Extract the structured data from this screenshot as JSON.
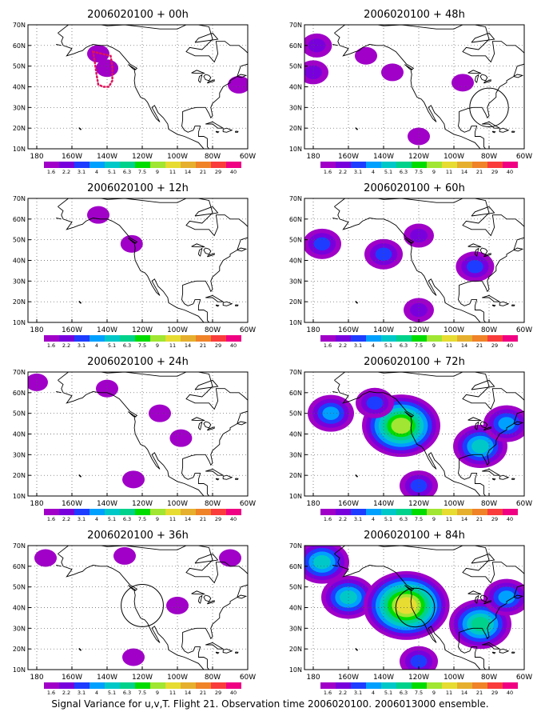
{
  "caption": "Signal Variance for u,v,T. Flight 21. Observation time 2006020100. 2006013000 ensemble.",
  "colorbar": {
    "labels": [
      "1.6",
      "2.2",
      "3.1",
      "4",
      "5.1",
      "6.3",
      "7.5",
      "9",
      "11",
      "14",
      "21",
      "29",
      "40"
    ],
    "colors": [
      "#a000c8",
      "#7800dc",
      "#1e3cff",
      "#00a0ff",
      "#00c8c8",
      "#00d28c",
      "#00dc00",
      "#a0e632",
      "#e6dc32",
      "#e6af2d",
      "#f08228",
      "#fa3c3c",
      "#f00082"
    ]
  },
  "chart_data": [
    {
      "type": "heatmap",
      "title": "2006020100 + 00h",
      "x_ticks": [
        "180",
        "160W",
        "140W",
        "120W",
        "100W",
        "80W",
        "60W"
      ],
      "y_ticks": [
        "10N",
        "20N",
        "30N",
        "40N",
        "50N",
        "60N",
        "70N"
      ],
      "xlim": [
        -185,
        -60
      ],
      "ylim": [
        10,
        70
      ],
      "grid": true,
      "signal": [
        {
          "lon": -145,
          "lat": 56,
          "value": 1.8
        },
        {
          "lon": -140,
          "lat": 49,
          "value": 1.8
        },
        {
          "lon": -65,
          "lat": 41,
          "value": 1.8
        }
      ],
      "flight_track": [
        [
          -148,
          57
        ],
        [
          -143,
          56
        ],
        [
          -138,
          55
        ],
        [
          -137,
          50
        ],
        [
          -137,
          43
        ],
        [
          -139,
          40
        ],
        [
          -142,
          40
        ],
        [
          -145,
          41
        ],
        [
          -146,
          46
        ],
        [
          -147,
          52
        ]
      ],
      "circle": null
    },
    {
      "type": "heatmap",
      "title": "2006020100 + 12h",
      "x_ticks": [
        "180",
        "160W",
        "140W",
        "120W",
        "100W",
        "80W",
        "60W"
      ],
      "y_ticks": [
        "10N",
        "20N",
        "30N",
        "40N",
        "50N",
        "60N",
        "70N"
      ],
      "xlim": [
        -185,
        -60
      ],
      "ylim": [
        10,
        70
      ],
      "grid": true,
      "signal": [
        {
          "lon": -145,
          "lat": 62,
          "value": 2.0
        },
        {
          "lon": -126,
          "lat": 48,
          "value": 2.0
        }
      ],
      "flight_track": [],
      "circle": null
    },
    {
      "type": "heatmap",
      "title": "2006020100 + 24h",
      "x_ticks": [
        "180",
        "160W",
        "140W",
        "120W",
        "100W",
        "80W",
        "60W"
      ],
      "y_ticks": [
        "10N",
        "20N",
        "30N",
        "40N",
        "50N",
        "60N",
        "70N"
      ],
      "xlim": [
        -185,
        -60
      ],
      "ylim": [
        10,
        70
      ],
      "grid": true,
      "signal": [
        {
          "lon": -180,
          "lat": 65,
          "value": 1.8
        },
        {
          "lon": -140,
          "lat": 62,
          "value": 2.0
        },
        {
          "lon": -110,
          "lat": 50,
          "value": 1.8
        },
        {
          "lon": -98,
          "lat": 38,
          "value": 1.8
        },
        {
          "lon": -125,
          "lat": 18,
          "value": 1.8
        }
      ],
      "flight_track": [],
      "circle": null
    },
    {
      "type": "heatmap",
      "title": "2006020100 + 36h",
      "x_ticks": [
        "180",
        "160W",
        "140W",
        "120W",
        "100W",
        "80W",
        "60W"
      ],
      "y_ticks": [
        "10N",
        "20N",
        "30N",
        "40N",
        "50N",
        "60N",
        "70N"
      ],
      "xlim": [
        -185,
        -60
      ],
      "ylim": [
        10,
        70
      ],
      "grid": true,
      "signal": [
        {
          "lon": -175,
          "lat": 64,
          "value": 1.8
        },
        {
          "lon": -130,
          "lat": 65,
          "value": 2.0
        },
        {
          "lon": -100,
          "lat": 41,
          "value": 2.0
        },
        {
          "lon": -70,
          "lat": 64,
          "value": 1.8
        },
        {
          "lon": -125,
          "lat": 16,
          "value": 1.8
        }
      ],
      "flight_track": [],
      "circle": {
        "lon": -120,
        "lat": 41,
        "radius_deg": 12
      }
    },
    {
      "type": "heatmap",
      "title": "2006020100 + 48h",
      "x_ticks": [
        "180",
        "160W",
        "140W",
        "120W",
        "100W",
        "80W",
        "60W"
      ],
      "y_ticks": [
        "10N",
        "20N",
        "30N",
        "40N",
        "50N",
        "60N",
        "70N"
      ],
      "xlim": [
        -185,
        -60
      ],
      "ylim": [
        10,
        70
      ],
      "grid": true,
      "signal": [
        {
          "lon": -178,
          "lat": 60,
          "value": 2.2
        },
        {
          "lon": -180,
          "lat": 47,
          "value": 2.4
        },
        {
          "lon": -150,
          "lat": 55,
          "value": 2.0
        },
        {
          "lon": -135,
          "lat": 47,
          "value": 2.0
        },
        {
          "lon": -95,
          "lat": 42,
          "value": 2.0
        },
        {
          "lon": -120,
          "lat": 16,
          "value": 2.0
        }
      ],
      "flight_track": [],
      "circle": {
        "lon": -80,
        "lat": 30,
        "radius_deg": 11
      }
    },
    {
      "type": "heatmap",
      "title": "2006020100 + 60h",
      "x_ticks": [
        "180",
        "160W",
        "140W",
        "120W",
        "100W",
        "80W",
        "60W"
      ],
      "y_ticks": [
        "10N",
        "20N",
        "30N",
        "40N",
        "50N",
        "60N",
        "70N"
      ],
      "xlim": [
        -185,
        -60
      ],
      "ylim": [
        10,
        70
      ],
      "grid": true,
      "signal": [
        {
          "lon": -175,
          "lat": 48,
          "value": 3.2
        },
        {
          "lon": -140,
          "lat": 43,
          "value": 3.6
        },
        {
          "lon": -120,
          "lat": 52,
          "value": 2.4
        },
        {
          "lon": -88,
          "lat": 37,
          "value": 3.5
        },
        {
          "lon": -120,
          "lat": 16,
          "value": 2.6
        }
      ],
      "flight_track": [],
      "circle": null
    },
    {
      "type": "heatmap",
      "title": "2006020100 + 72h",
      "x_ticks": [
        "180",
        "160W",
        "140W",
        "120W",
        "100W",
        "80W",
        "60W"
      ],
      "y_ticks": [
        "10N",
        "20N",
        "30N",
        "40N",
        "50N",
        "60N",
        "70N"
      ],
      "xlim": [
        -185,
        -60
      ],
      "ylim": [
        10,
        70
      ],
      "grid": true,
      "signal": [
        {
          "lon": -170,
          "lat": 50,
          "value": 4.5
        },
        {
          "lon": -130,
          "lat": 44,
          "value": 9.5
        },
        {
          "lon": -145,
          "lat": 55,
          "value": 3.5
        },
        {
          "lon": -85,
          "lat": 34,
          "value": 5.5
        },
        {
          "lon": -70,
          "lat": 45,
          "value": 4.0
        },
        {
          "lon": -120,
          "lat": 15,
          "value": 3.5
        }
      ],
      "flight_track": [],
      "circle": null
    },
    {
      "type": "heatmap",
      "title": "2006020100 + 84h",
      "x_ticks": [
        "180",
        "160W",
        "140W",
        "120W",
        "100W",
        "80W",
        "60W"
      ],
      "y_ticks": [
        "10N",
        "20N",
        "30N",
        "40N",
        "50N",
        "60N",
        "70N"
      ],
      "xlim": [
        -185,
        -60
      ],
      "ylim": [
        10,
        70
      ],
      "grid": true,
      "signal": [
        {
          "lon": -175,
          "lat": 62,
          "value": 5.5
        },
        {
          "lon": -160,
          "lat": 45,
          "value": 5.5
        },
        {
          "lon": -127,
          "lat": 41,
          "value": 12
        },
        {
          "lon": -85,
          "lat": 32,
          "value": 7
        },
        {
          "lon": -70,
          "lat": 45,
          "value": 5
        },
        {
          "lon": -120,
          "lat": 14,
          "value": 3.5
        }
      ],
      "flight_track": [],
      "circle": {
        "lon": -122,
        "lat": 40,
        "radius_deg": 11
      }
    }
  ]
}
